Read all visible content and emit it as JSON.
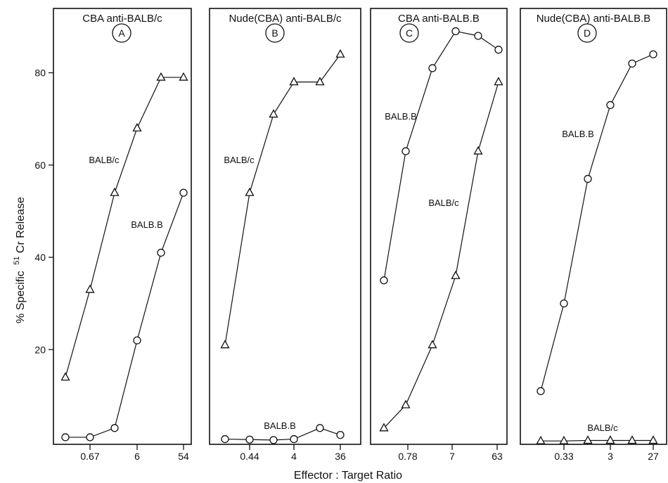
{
  "xlabel": "Effector : Target Ratio",
  "ylabel_main": "% Specific",
  "ylabel_sup": "51",
  "ylabel_tail": "Cr Release",
  "chart_data": [
    {
      "type": "line",
      "panel": "A",
      "title": "CBA anti-BALB/c",
      "x_tick_labels": [
        "0.67",
        "6",
        "54"
      ],
      "y_ticks": [
        20,
        40,
        60,
        80
      ],
      "ylim": [
        0,
        90
      ],
      "series": [
        {
          "name": "BALB/c",
          "marker": "triangle",
          "values": [
            14,
            33,
            54,
            68,
            79,
            79
          ]
        },
        {
          "name": "BALB.B",
          "marker": "circle",
          "values": [
            1,
            1,
            3,
            22,
            41,
            54
          ]
        }
      ]
    },
    {
      "type": "line",
      "panel": "B",
      "title": "Nude(CBA) anti-BALB/c",
      "x_tick_labels": [
        "0.44",
        "4",
        "36"
      ],
      "ylim": [
        0,
        90
      ],
      "series": [
        {
          "name": "BALB/c",
          "marker": "triangle",
          "values": [
            21,
            54,
            71,
            78,
            78,
            84
          ]
        },
        {
          "name": "BALB.B",
          "marker": "circle",
          "values": [
            0.6,
            0.5,
            0.4,
            0.6,
            3,
            1.5
          ]
        }
      ]
    },
    {
      "type": "line",
      "panel": "C",
      "title": "CBA anti-BALB.B",
      "x_tick_labels": [
        "0.78",
        "7",
        "63"
      ],
      "ylim": [
        0,
        90
      ],
      "series": [
        {
          "name": "BALB.B",
          "marker": "circle",
          "values": [
            35,
            63,
            81,
            89,
            88,
            85
          ]
        },
        {
          "name": "BALB/c",
          "marker": "triangle",
          "values": [
            3,
            8,
            21,
            36,
            63,
            78
          ]
        }
      ]
    },
    {
      "type": "line",
      "panel": "D",
      "title": "Nude(CBA) anti-BALB.B",
      "x_tick_labels": [
        "0.33",
        "3",
        "27"
      ],
      "ylim": [
        0,
        90
      ],
      "series": [
        {
          "name": "BALB.B",
          "marker": "circle",
          "values": [
            11,
            30,
            57,
            73,
            82,
            84
          ]
        },
        {
          "name": "BALB/c",
          "marker": "triangle",
          "values": [
            0.2,
            0.2,
            0.3,
            0.3,
            0.3,
            0.3
          ]
        }
      ]
    }
  ]
}
